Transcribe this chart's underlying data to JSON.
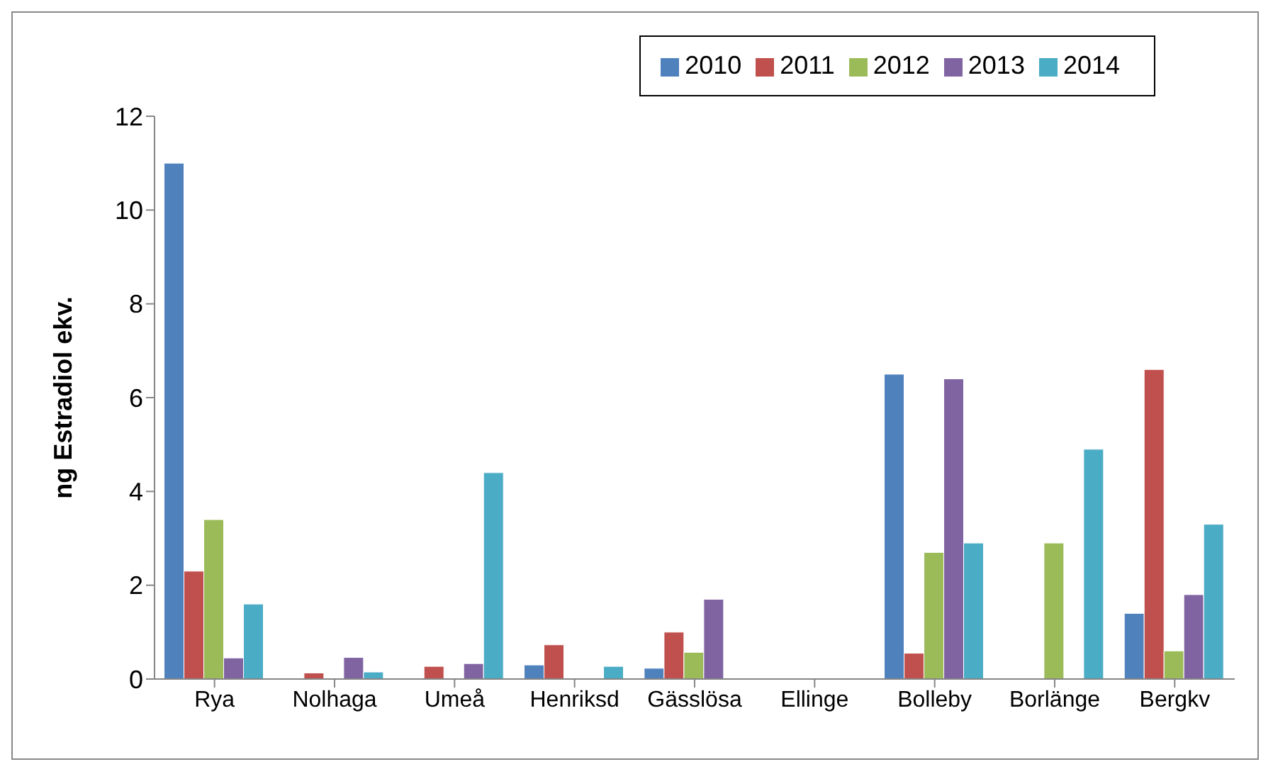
{
  "chart_data": {
    "type": "bar",
    "ylabel": "ng Estradiol ekv.",
    "categories": [
      "Rya",
      "Nolhaga",
      "Umeå",
      "Henriksd",
      "Gässlösa",
      "Ellinge",
      "Bolleby",
      "Borlänge",
      "Bergkv"
    ],
    "series": [
      {
        "name": "2010",
        "color": "#4f81bd",
        "values": [
          11,
          null,
          null,
          0.3,
          0.23,
          null,
          6.5,
          null,
          1.4
        ]
      },
      {
        "name": "2011",
        "color": "#c0504d",
        "values": [
          2.3,
          0.13,
          0.27,
          0.73,
          1.0,
          null,
          0.55,
          null,
          6.6
        ]
      },
      {
        "name": "2012",
        "color": "#9bbb59",
        "values": [
          3.4,
          null,
          null,
          null,
          0.57,
          null,
          2.7,
          2.9,
          0.6
        ]
      },
      {
        "name": "2013",
        "color": "#8064a2",
        "values": [
          0.45,
          0.46,
          0.33,
          null,
          1.7,
          null,
          6.4,
          null,
          1.8
        ]
      },
      {
        "name": "2014",
        "color": "#4bacc6",
        "values": [
          1.6,
          0.15,
          4.4,
          0.27,
          null,
          null,
          2.9,
          4.9,
          3.3
        ]
      }
    ],
    "ylim": [
      0,
      12
    ],
    "yticks": [
      0,
      2,
      4,
      6,
      8,
      10,
      12
    ],
    "grid": false,
    "legend": "top right"
  }
}
